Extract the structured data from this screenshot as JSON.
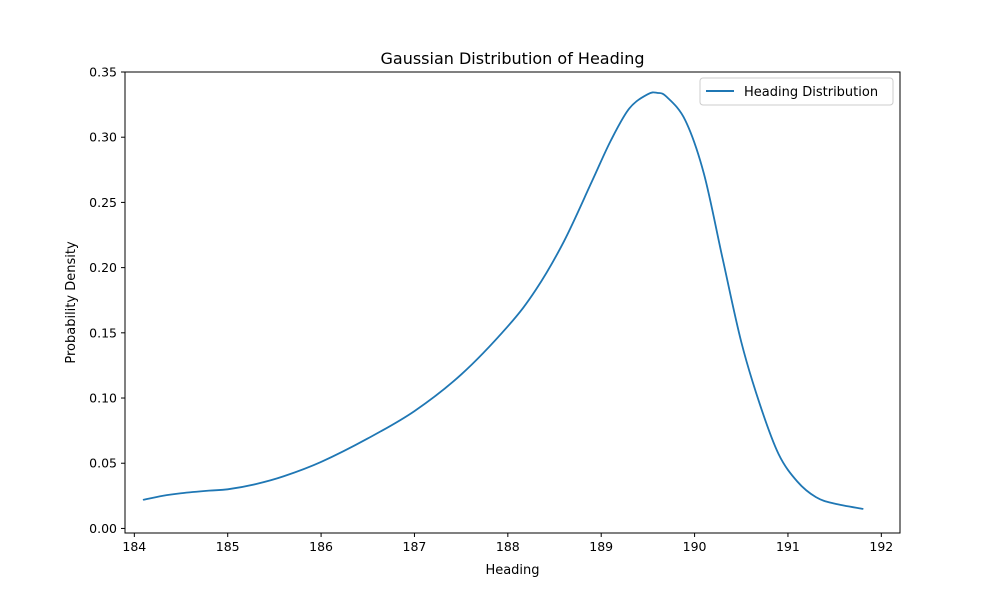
{
  "chart_data": {
    "type": "line",
    "title": "Gaussian Distribution of Heading",
    "xlabel": "Heading",
    "ylabel": "Probability Density",
    "xlim": [
      183.9,
      192.2
    ],
    "ylim": [
      -0.0035,
      0.35
    ],
    "xticks": [
      184,
      185,
      186,
      187,
      188,
      189,
      190,
      191,
      192
    ],
    "yticks": [
      0.0,
      0.05,
      0.1,
      0.15,
      0.2,
      0.25,
      0.3,
      0.35
    ],
    "xtick_labels": [
      "184",
      "185",
      "186",
      "187",
      "188",
      "189",
      "190",
      "191",
      "192"
    ],
    "ytick_labels": [
      "0.00",
      "0.05",
      "0.10",
      "0.15",
      "0.20",
      "0.25",
      "0.30",
      "0.35"
    ],
    "grid": false,
    "legend_position": "top-right",
    "series": [
      {
        "name": "Heading Distribution",
        "color": "#1f77b4",
        "x": [
          184.1,
          184.3,
          184.5,
          184.8,
          185.0,
          185.3,
          185.6,
          186.0,
          186.5,
          187.0,
          187.5,
          188.0,
          188.3,
          188.6,
          188.9,
          189.1,
          189.3,
          189.5,
          189.6,
          189.7,
          189.9,
          190.1,
          190.3,
          190.5,
          190.7,
          190.9,
          191.1,
          191.3,
          191.5,
          191.8
        ],
        "values": [
          0.022,
          0.025,
          0.027,
          0.029,
          0.03,
          0.034,
          0.04,
          0.051,
          0.069,
          0.09,
          0.118,
          0.155,
          0.183,
          0.22,
          0.266,
          0.297,
          0.322,
          0.333,
          0.334,
          0.331,
          0.313,
          0.272,
          0.207,
          0.143,
          0.095,
          0.057,
          0.036,
          0.024,
          0.019,
          0.015
        ]
      }
    ]
  }
}
